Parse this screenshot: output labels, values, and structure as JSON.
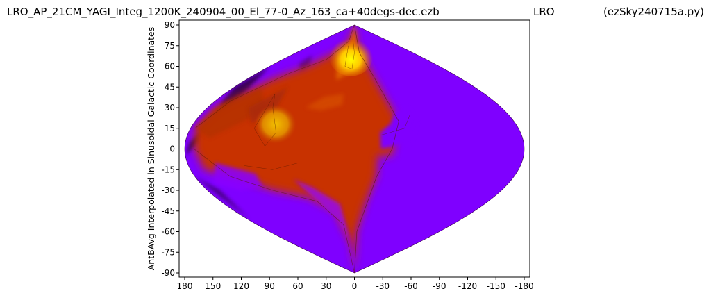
{
  "header": {
    "filename": "LRO_AP_21CM_YAGI_Integ_1200K_240904_00_El_77-0_Az_163_ca+40degs-dec.ezb",
    "site": "LRO",
    "script": "(ezSky240715a.py)"
  },
  "chart_data": {
    "type": "heatmap",
    "projection": "sinusoidal",
    "ylabel": "AntBAvg Interpolated in Sinusoidal Galactic Coordinates",
    "xlabel": "",
    "xlim": [
      180,
      -180
    ],
    "ylim": [
      -90,
      90
    ],
    "x_ticks": [
      180,
      150,
      120,
      90,
      60,
      30,
      0,
      -30,
      -60,
      -90,
      -120,
      -150,
      -180
    ],
    "x_tick_labels": [
      "180",
      "150",
      "120",
      "90",
      "60",
      "30",
      "0",
      "-30",
      "-60",
      "-90",
      "-120",
      "-150",
      "-180"
    ],
    "y_ticks": [
      90,
      75,
      60,
      45,
      30,
      15,
      0,
      -15,
      -30,
      -45,
      -60,
      -75,
      -90
    ],
    "y_tick_labels": [
      "90",
      "75",
      "60",
      "45",
      "30",
      "15",
      "0",
      "-15",
      "-30",
      "-45",
      "-60",
      "-75",
      "-90"
    ],
    "colormap": "gnuplot",
    "colors": {
      "low": "#7f00ff",
      "dark": "#2a0040",
      "mid": "#c83200",
      "high": "#ffff00"
    },
    "features": [
      {
        "name": "peak",
        "l": 10,
        "b": 70
      },
      {
        "name": "secondary-peak",
        "l": 90,
        "b": 18
      },
      {
        "name": "galactic-plane-band",
        "l": 0,
        "b": 0
      }
    ]
  }
}
